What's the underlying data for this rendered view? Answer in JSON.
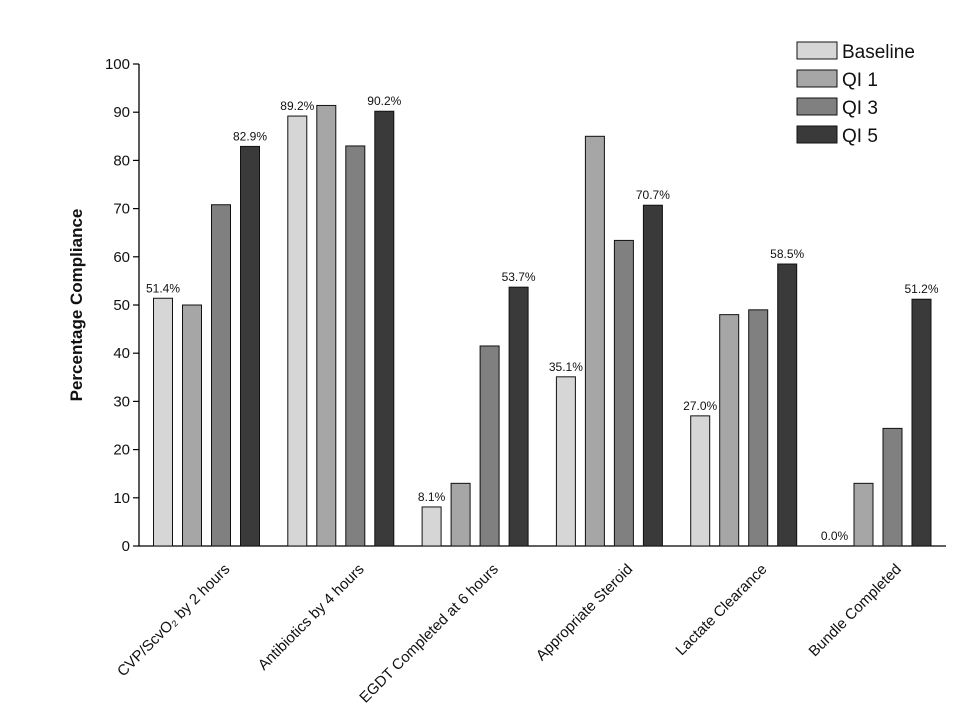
{
  "chart_data": {
    "type": "bar",
    "title": "",
    "xlabel": "",
    "ylabel": "Percentage Compliance",
    "ylim": [
      0,
      100
    ],
    "yticks": [
      0,
      10,
      20,
      30,
      40,
      50,
      60,
      70,
      80,
      90,
      100
    ],
    "grid": false,
    "legend_position": "top-right",
    "categories": [
      "CVP/ScvO₂ by 2 hours",
      "Antibiotics by 4 hours",
      "EGDT Completed at 6 hours",
      "Appropriate Steroid",
      "Lactate Clearance",
      "Bundle Completed"
    ],
    "series": [
      {
        "name": "Baseline",
        "color": "#d6d6d6",
        "values": [
          51.4,
          89.2,
          8.1,
          35.1,
          27.0,
          0.0
        ],
        "labels": [
          "51.4%",
          "89.2%",
          "8.1%",
          "35.1%",
          "27.0%",
          "0.0%"
        ]
      },
      {
        "name": "QI 1",
        "color": "#a6a6a6",
        "values": [
          50,
          91.4,
          13,
          85,
          48,
          13
        ],
        "labels": [
          "",
          "",
          "",
          "",
          "",
          ""
        ]
      },
      {
        "name": "QI 3",
        "color": "#808080",
        "values": [
          70.8,
          83,
          41.5,
          63.4,
          49,
          24.4
        ],
        "labels": [
          "",
          "",
          "",
          "",
          "",
          ""
        ]
      },
      {
        "name": "QI 5",
        "color": "#3a3a3a",
        "values": [
          82.9,
          90.2,
          53.7,
          70.7,
          58.5,
          51.2
        ],
        "labels": [
          "82.9%",
          "90.2%",
          "53.7%",
          "70.7%",
          "58.5%",
          "51.2%"
        ]
      }
    ]
  }
}
